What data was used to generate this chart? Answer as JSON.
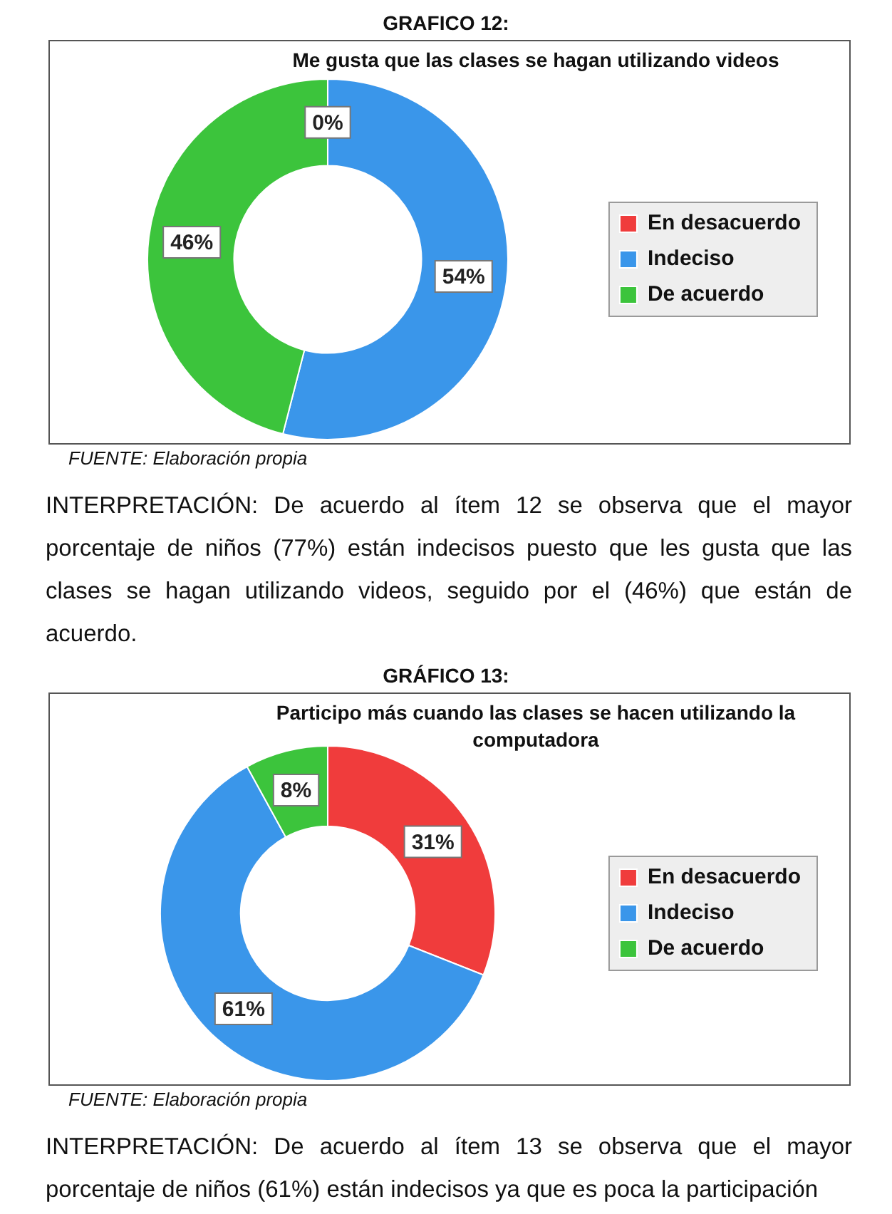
{
  "chart_data": [
    {
      "type": "donut",
      "title": "GRAFICO 12:",
      "subtitle": "Me gusta que las clases se hagan utilizando videos",
      "categories": [
        "En desacuerdo",
        "Indeciso",
        "De acuerdo"
      ],
      "values": [
        0,
        54,
        46
      ],
      "colors": [
        "#f03c3c",
        "#3a96ea",
        "#3cc43c"
      ],
      "value_labels": [
        "0%",
        "54%",
        "46%"
      ],
      "legend": "right",
      "annotations": [
        "FUENTE: Elaboración propia",
        "INTERPRETACIÓN: De acuerdo al ítem 12 se observa que el mayor porcentaje de niños (77%) están indecisos puesto que les gusta que las clases se hagan utilizando videos, seguido por el (46%) que están de acuerdo."
      ]
    },
    {
      "type": "donut",
      "title": "GRÁFICO 13:",
      "subtitle": "Participo más cuando las clases se hacen utilizando la computadora",
      "categories": [
        "En desacuerdo",
        "Indeciso",
        "De acuerdo"
      ],
      "values": [
        31,
        61,
        8
      ],
      "colors": [
        "#f03c3c",
        "#3a96ea",
        "#3cc43c"
      ],
      "value_labels": [
        "31%",
        "61%",
        "8%"
      ],
      "legend": "right",
      "annotations": [
        "FUENTE: Elaboración propia",
        "INTERPRETACIÓN: De acuerdo al ítem 13 se observa que el mayor porcentaje de niños (61%) están indecisos ya que es poca la participación"
      ]
    }
  ]
}
